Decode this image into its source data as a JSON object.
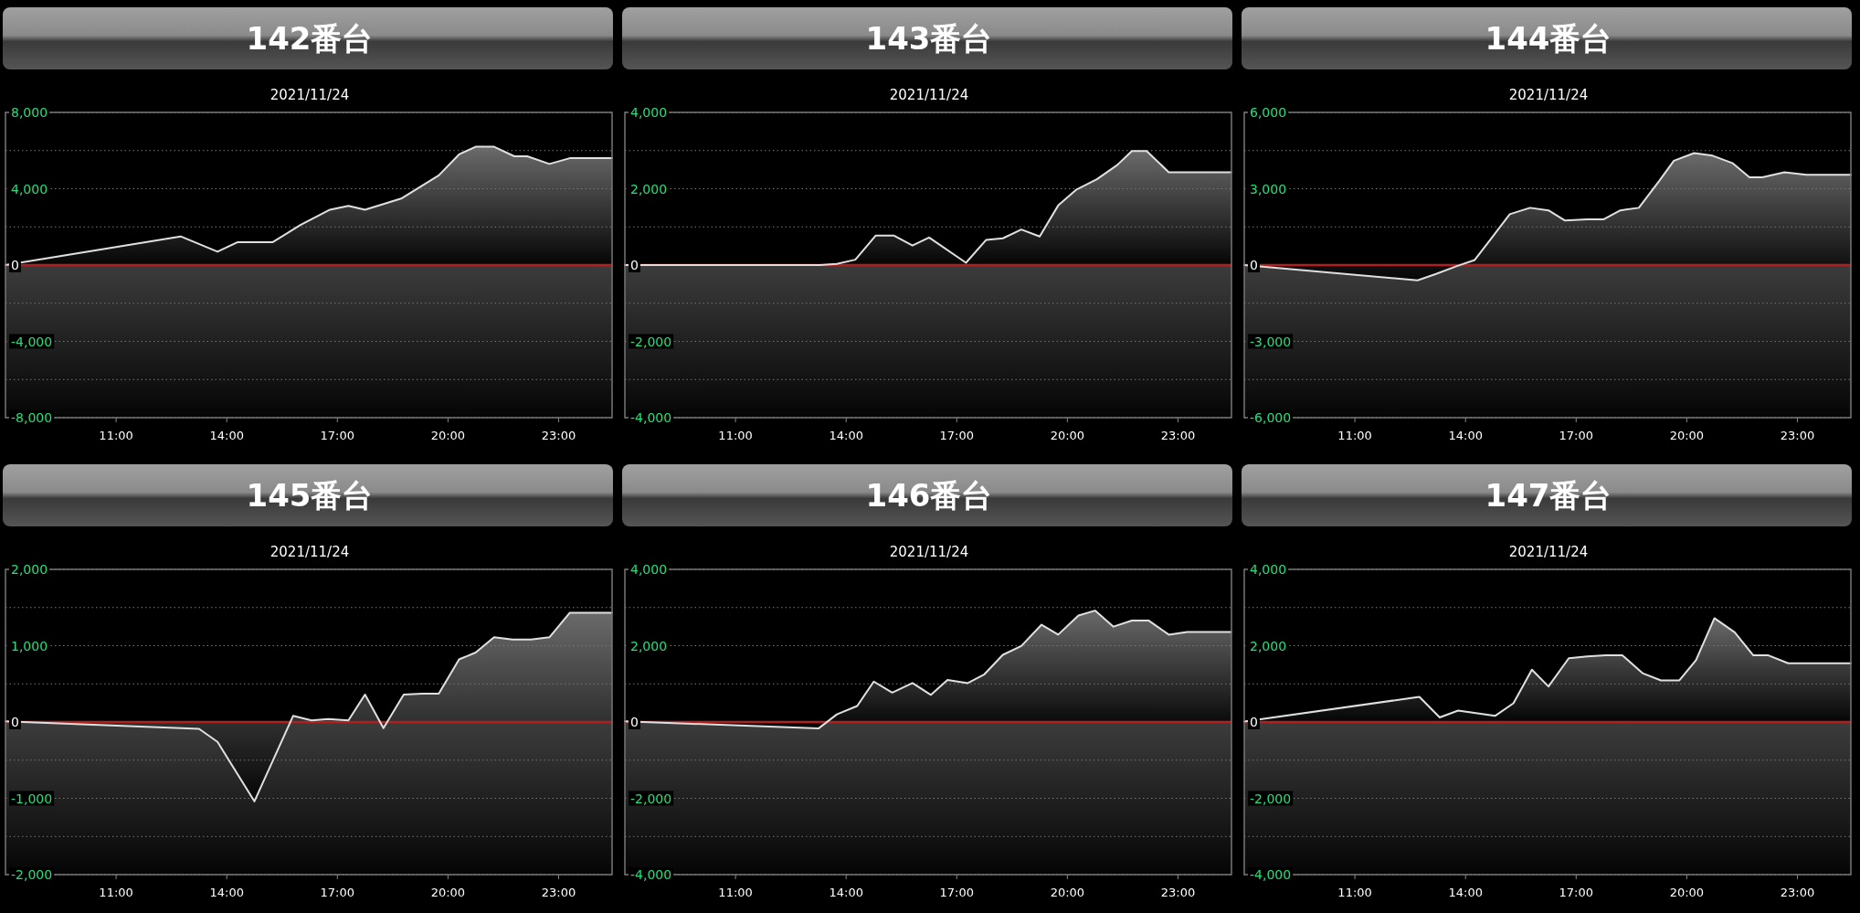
{
  "chart_data": [
    {
      "type": "area",
      "title": "142番台",
      "subtitle": "2021/11/24",
      "xlim": [
        8,
        24.45
      ],
      "xticks": [
        {
          "value": 11,
          "label": "11:00"
        },
        {
          "value": 14,
          "label": "14:00"
        },
        {
          "value": 17,
          "label": "17:00"
        },
        {
          "value": 20,
          "label": "20:00"
        },
        {
          "value": 23,
          "label": "23:00"
        }
      ],
      "ylim": [
        -8000,
        8000
      ],
      "yticks": [
        {
          "value": 8000,
          "label": "8,000"
        },
        {
          "value": 6000,
          "label": null
        },
        {
          "value": 4000,
          "label": "4,000"
        },
        {
          "value": 2000,
          "label": null
        },
        {
          "value": 0,
          "label": "0"
        },
        {
          "value": -2000,
          "label": null
        },
        {
          "value": -4000,
          "label": "-4,000"
        },
        {
          "value": -6000,
          "label": null
        },
        {
          "value": -8000,
          "label": "-8,000"
        }
      ],
      "grid": "y",
      "ref_lines": [
        {
          "axis": "y",
          "value": 0,
          "color": "#b02020"
        }
      ],
      "x": [
        8.0,
        12.75,
        13.75,
        14.3,
        15.25,
        16.0,
        16.8,
        17.3,
        17.75,
        18.75,
        19.75,
        20.3,
        20.75,
        21.25,
        21.8,
        22.15,
        22.75,
        23.3,
        24.45
      ],
      "series": [
        {
          "color": "#e0e0e0",
          "values": [
            0,
            1500,
            700,
            1200,
            1200,
            2100,
            2900,
            3100,
            2900,
            3500,
            4700,
            5800,
            6200,
            6200,
            5700,
            5700,
            5300,
            5600,
            5600
          ]
        }
      ]
    },
    {
      "type": "area",
      "title": "143番台",
      "subtitle": "2021/11/24",
      "xlim": [
        8,
        24.45
      ],
      "xticks": [
        {
          "value": 11,
          "label": "11:00"
        },
        {
          "value": 14,
          "label": "14:00"
        },
        {
          "value": 17,
          "label": "17:00"
        },
        {
          "value": 20,
          "label": "20:00"
        },
        {
          "value": 23,
          "label": "23:00"
        }
      ],
      "ylim": [
        -4000,
        4000
      ],
      "yticks": [
        {
          "value": 4000,
          "label": "4,000"
        },
        {
          "value": 3000,
          "label": null
        },
        {
          "value": 2000,
          "label": "2,000"
        },
        {
          "value": 1000,
          "label": null
        },
        {
          "value": 0,
          "label": "0"
        },
        {
          "value": -1000,
          "label": null
        },
        {
          "value": -2000,
          "label": "-2,000"
        },
        {
          "value": -3000,
          "label": null
        },
        {
          "value": -4000,
          "label": "-4,000"
        }
      ],
      "grid": "y",
      "ref_lines": [
        {
          "axis": "y",
          "value": 0,
          "color": "#b02020"
        }
      ],
      "x": [
        8.0,
        13.3,
        13.75,
        14.25,
        14.8,
        15.3,
        15.8,
        16.25,
        17.25,
        17.8,
        18.25,
        18.75,
        19.25,
        19.75,
        20.25,
        20.8,
        21.35,
        21.75,
        22.15,
        22.75,
        24.45
      ],
      "series": [
        {
          "color": "#e0e0e0",
          "values": [
            0,
            0,
            30,
            140,
            770,
            770,
            510,
            720,
            60,
            660,
            700,
            930,
            750,
            1560,
            1980,
            2250,
            2620,
            2990,
            2990,
            2430,
            2430
          ]
        }
      ]
    },
    {
      "type": "area",
      "title": "144番台",
      "subtitle": "2021/11/24",
      "xlim": [
        8,
        24.45
      ],
      "xticks": [
        {
          "value": 11,
          "label": "11:00"
        },
        {
          "value": 14,
          "label": "14:00"
        },
        {
          "value": 17,
          "label": "17:00"
        },
        {
          "value": 20,
          "label": "20:00"
        },
        {
          "value": 23,
          "label": "23:00"
        }
      ],
      "ylim": [
        -6000,
        6000
      ],
      "yticks": [
        {
          "value": 6000,
          "label": "6,000"
        },
        {
          "value": 4500,
          "label": null
        },
        {
          "value": 3000,
          "label": "3,000"
        },
        {
          "value": 1500,
          "label": null
        },
        {
          "value": 0,
          "label": "0"
        },
        {
          "value": -1500,
          "label": null
        },
        {
          "value": -3000,
          "label": "-3,000"
        },
        {
          "value": -4500,
          "label": null
        },
        {
          "value": -6000,
          "label": "-6,000"
        }
      ],
      "grid": "y",
      "ref_lines": [
        {
          "axis": "y",
          "value": 0,
          "color": "#b02020"
        }
      ],
      "x": [
        8.0,
        12.7,
        13.2,
        13.75,
        14.25,
        14.7,
        15.2,
        15.75,
        16.25,
        16.7,
        17.3,
        17.75,
        18.2,
        18.7,
        19.25,
        19.65,
        20.2,
        20.7,
        21.25,
        21.7,
        22.05,
        22.65,
        23.25,
        24.45
      ],
      "series": [
        {
          "color": "#e0e0e0",
          "values": [
            0,
            -600,
            -350,
            -50,
            200,
            1050,
            2000,
            2250,
            2150,
            1750,
            1800,
            1800,
            2150,
            2250,
            3300,
            4100,
            4400,
            4300,
            4000,
            3450,
            3450,
            3650,
            3550,
            3550
          ]
        }
      ]
    },
    {
      "type": "area",
      "title": "145番台",
      "subtitle": "2021/11/24",
      "xlim": [
        8,
        24.45
      ],
      "xticks": [
        {
          "value": 11,
          "label": "11:00"
        },
        {
          "value": 14,
          "label": "14:00"
        },
        {
          "value": 17,
          "label": "17:00"
        },
        {
          "value": 20,
          "label": "20:00"
        },
        {
          "value": 23,
          "label": "23:00"
        }
      ],
      "ylim": [
        -2000,
        2000
      ],
      "yticks": [
        {
          "value": 2000,
          "label": "2,000"
        },
        {
          "value": 1500,
          "label": null
        },
        {
          "value": 1000,
          "label": "1,000"
        },
        {
          "value": 500,
          "label": null
        },
        {
          "value": 0,
          "label": "0"
        },
        {
          "value": -500,
          "label": null
        },
        {
          "value": -1000,
          "label": "-1,000"
        },
        {
          "value": -1500,
          "label": null
        },
        {
          "value": -2000,
          "label": "-2,000"
        }
      ],
      "grid": "y",
      "ref_lines": [
        {
          "axis": "y",
          "value": 0,
          "color": "#b02020"
        }
      ],
      "x": [
        8.0,
        13.25,
        13.75,
        14.75,
        15.8,
        16.3,
        16.75,
        17.3,
        17.75,
        18.25,
        18.8,
        19.3,
        19.75,
        20.3,
        20.75,
        21.25,
        21.75,
        22.25,
        22.75,
        23.3,
        24.45
      ],
      "series": [
        {
          "color": "#e0e0e0",
          "values": [
            10,
            -90,
            -260,
            -1040,
            80,
            20,
            40,
            20,
            360,
            -80,
            360,
            370,
            370,
            820,
            910,
            1110,
            1080,
            1080,
            1110,
            1430,
            1430
          ]
        }
      ]
    },
    {
      "type": "area",
      "title": "146番台",
      "subtitle": "2021/11/24",
      "xlim": [
        8,
        24.45
      ],
      "xticks": [
        {
          "value": 11,
          "label": "11:00"
        },
        {
          "value": 14,
          "label": "14:00"
        },
        {
          "value": 17,
          "label": "17:00"
        },
        {
          "value": 20,
          "label": "20:00"
        },
        {
          "value": 23,
          "label": "23:00"
        }
      ],
      "ylim": [
        -4000,
        4000
      ],
      "yticks": [
        {
          "value": 4000,
          "label": "4,000"
        },
        {
          "value": 3000,
          "label": null
        },
        {
          "value": 2000,
          "label": "2,000"
        },
        {
          "value": 1000,
          "label": null
        },
        {
          "value": 0,
          "label": "0"
        },
        {
          "value": -1000,
          "label": null
        },
        {
          "value": -2000,
          "label": "-2,000"
        },
        {
          "value": -3000,
          "label": null
        },
        {
          "value": -4000,
          "label": "-4,000"
        }
      ],
      "grid": "y",
      "ref_lines": [
        {
          "axis": "y",
          "value": 0,
          "color": "#b02020"
        }
      ],
      "x": [
        8.0,
        13.25,
        13.75,
        14.3,
        14.75,
        15.25,
        15.8,
        16.3,
        16.75,
        17.3,
        17.75,
        18.25,
        18.75,
        19.3,
        19.75,
        20.3,
        20.75,
        21.25,
        21.75,
        22.2,
        22.75,
        23.25,
        24.45
      ],
      "series": [
        {
          "color": "#e0e0e0",
          "values": [
            20,
            -170,
            200,
            420,
            1060,
            770,
            1020,
            710,
            1100,
            1020,
            1250,
            1760,
            1990,
            2550,
            2290,
            2790,
            2920,
            2500,
            2660,
            2660,
            2290,
            2360,
            2360
          ]
        }
      ]
    },
    {
      "type": "area",
      "title": "147番台",
      "subtitle": "2021/11/24",
      "xlim": [
        8,
        24.45
      ],
      "xticks": [
        {
          "value": 11,
          "label": "11:00"
        },
        {
          "value": 14,
          "label": "14:00"
        },
        {
          "value": 17,
          "label": "17:00"
        },
        {
          "value": 20,
          "label": "20:00"
        },
        {
          "value": 23,
          "label": "23:00"
        }
      ],
      "ylim": [
        -4000,
        4000
      ],
      "yticks": [
        {
          "value": 4000,
          "label": "4,000"
        },
        {
          "value": 3000,
          "label": null
        },
        {
          "value": 2000,
          "label": "2,000"
        },
        {
          "value": 1000,
          "label": null
        },
        {
          "value": 0,
          "label": "0"
        },
        {
          "value": -1000,
          "label": null
        },
        {
          "value": -2000,
          "label": "-2,000"
        },
        {
          "value": -3000,
          "label": null
        },
        {
          "value": -4000,
          "label": "-4,000"
        }
      ],
      "grid": "y",
      "ref_lines": [
        {
          "axis": "y",
          "value": 0,
          "color": "#b02020"
        }
      ],
      "x": [
        8.0,
        12.75,
        13.3,
        13.8,
        14.8,
        15.3,
        15.8,
        16.25,
        16.8,
        17.3,
        17.8,
        18.25,
        18.8,
        19.3,
        19.8,
        20.25,
        20.75,
        21.3,
        21.8,
        22.2,
        22.75,
        23.25,
        24.45
      ],
      "series": [
        {
          "color": "#e0e0e0",
          "values": [
            10,
            660,
            120,
            300,
            160,
            490,
            1370,
            930,
            1670,
            1720,
            1750,
            1750,
            1280,
            1090,
            1090,
            1620,
            2720,
            2350,
            1750,
            1750,
            1540,
            1540,
            1540
          ]
        }
      ]
    }
  ]
}
